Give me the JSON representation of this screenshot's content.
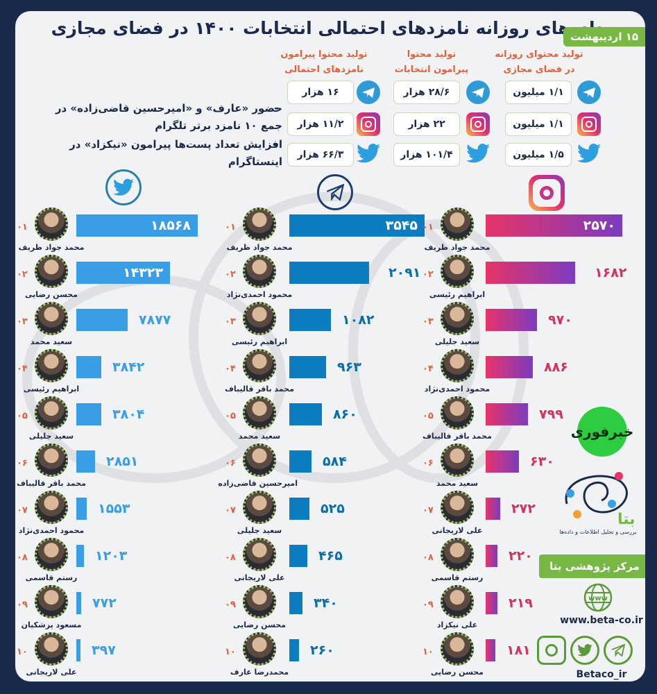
{
  "header": {
    "title": "داده‌های روزانه نامزدهای احتمالی انتخابات ۱۴۰۰  در فضای مجازی",
    "date_badge": "۱۵ اردیبهشت"
  },
  "summary": {
    "columns": [
      {
        "heading_line1": "تولید محتوای روزانه",
        "heading_line2": "در فضای مجازی",
        "telegram": "۱/۱ میلیون",
        "instagram": "۱/۱ میلیون",
        "twitter": "۱/۵ میلیون"
      },
      {
        "heading_line1": "تولید محتوا",
        "heading_line2": "پیرامون انتخابات",
        "telegram": "۲۸/۶ هزار",
        "instagram": "۲۲ هزار",
        "twitter": "۱۰۱/۴ هزار"
      },
      {
        "heading_line1": "تولید محتوا پیرامون",
        "heading_line2": "نامزدهای احتمالی",
        "telegram": "۱۶ هزار",
        "instagram": "۱۱/۲ هزار",
        "twitter": "۶۶/۳ هزار"
      }
    ],
    "notes": [
      {
        "bullet": "-",
        "line1": "حضور «عارف» و «امیرحسین قاضی‌زاده» در",
        "line2": "جمع ۱۰ نامزد برتر تلگرام"
      },
      {
        "bullet": "-",
        "line1": "افزایش تعداد پست‌ها پیرامون «نیکزاد» در",
        "line2": "اینستاگرام"
      }
    ]
  },
  "chart_data": [
    {
      "type": "bar",
      "title": "Twitter",
      "platform_icon": "twitter-icon",
      "color": "#3a9ee6",
      "categories": [
        "محمد جواد ظریف",
        "محسن رضایی",
        "سعید محمد",
        "ابراهیم رئیسی",
        "سعید جلیلی",
        "محمد باقر قالیباف",
        "محمود احمدی‌نژاد",
        "رستم قاسمی",
        "مسعود پزشکیان",
        "علی لاریجانی"
      ],
      "ranks": [
        "۰۱",
        "۰۲",
        "۰۳",
        "۰۴",
        "۰۵",
        "۰۶",
        "۰۷",
        "۰۸",
        "۰۹",
        "۱۰"
      ],
      "values": [
        18568,
        14323,
        7877,
        3842,
        3804,
        2851,
        1553,
        1203,
        772,
        397
      ],
      "labels": [
        "۱۸۵۶۸",
        "۱۴۳۲۳",
        "۷۸۷۷",
        "۳۸۴۲",
        "۳۸۰۴",
        "۲۸۵۱",
        "۱۵۵۳",
        "۱۲۰۳",
        "۷۷۲",
        "۳۹۷"
      ]
    },
    {
      "type": "bar",
      "title": "Telegram",
      "platform_icon": "telegram-icon",
      "color": "#0b7dc0",
      "categories": [
        "محمد جواد ظریف",
        "محمود احمدی‌نژاد",
        "ابراهیم رئیسی",
        "محمد باقر قالیباف",
        "سعید محمد",
        "امیرحسین قاضی‌زاده",
        "سعید جلیلی",
        "علی لاریجانی",
        "محسن رضایی",
        "محمدرضا عارف"
      ],
      "ranks": [
        "۰۱",
        "۰۲",
        "۰۳",
        "۰۴",
        "۰۵",
        "۰۶",
        "۰۷",
        "۰۸",
        "۰۹",
        "۱۰"
      ],
      "values": [
        3545,
        2091,
        1082,
        963,
        860,
        584,
        525,
        465,
        340,
        260
      ],
      "labels": [
        "۳۵۴۵",
        "۲۰۹۱",
        "۱۰۸۲",
        "۹۶۳",
        "۸۶۰",
        "۵۸۴",
        "۵۲۵",
        "۴۶۵",
        "۳۴۰",
        "۲۶۰"
      ]
    },
    {
      "type": "bar",
      "title": "Instagram",
      "platform_icon": "instagram-icon",
      "color": "#d3345f",
      "categories": [
        "محمد جواد ظریف",
        "ابراهیم رئیسی",
        "سعید جلیلی",
        "محمود احمدی‌نژاد",
        "محمد باقر قالیباف",
        "سعید محمد",
        "علی لاریجانی",
        "رستم قاسمی",
        "علی نیکزاد",
        "محسن رضایی"
      ],
      "ranks": [
        "۰۱",
        "۰۲",
        "۰۳",
        "۰۴",
        "۰۵",
        "۰۶",
        "۰۷",
        "۰۸",
        "۰۹",
        "۱۰"
      ],
      "values": [
        2570,
        1682,
        970,
        886,
        799,
        630,
        272,
        220,
        219,
        181
      ],
      "labels": [
        "۲۵۷۰",
        "۱۶۸۲",
        "۹۷۰",
        "۸۸۶",
        "۷۹۹",
        "۶۳۰",
        "۲۷۲",
        "۲۲۰",
        "۲۱۹",
        "۱۸۱"
      ]
    }
  ],
  "branding": {
    "partner_logo_text": "خبرفوری",
    "beta_name": "بتا",
    "beta_tagline": "بررسی و تحلیل اطلاعات و داده‌ها",
    "center_label": "مرکز پژوهشی بتا",
    "website": "www.beta-co.ir",
    "social_handle": "Betaco_ir"
  }
}
